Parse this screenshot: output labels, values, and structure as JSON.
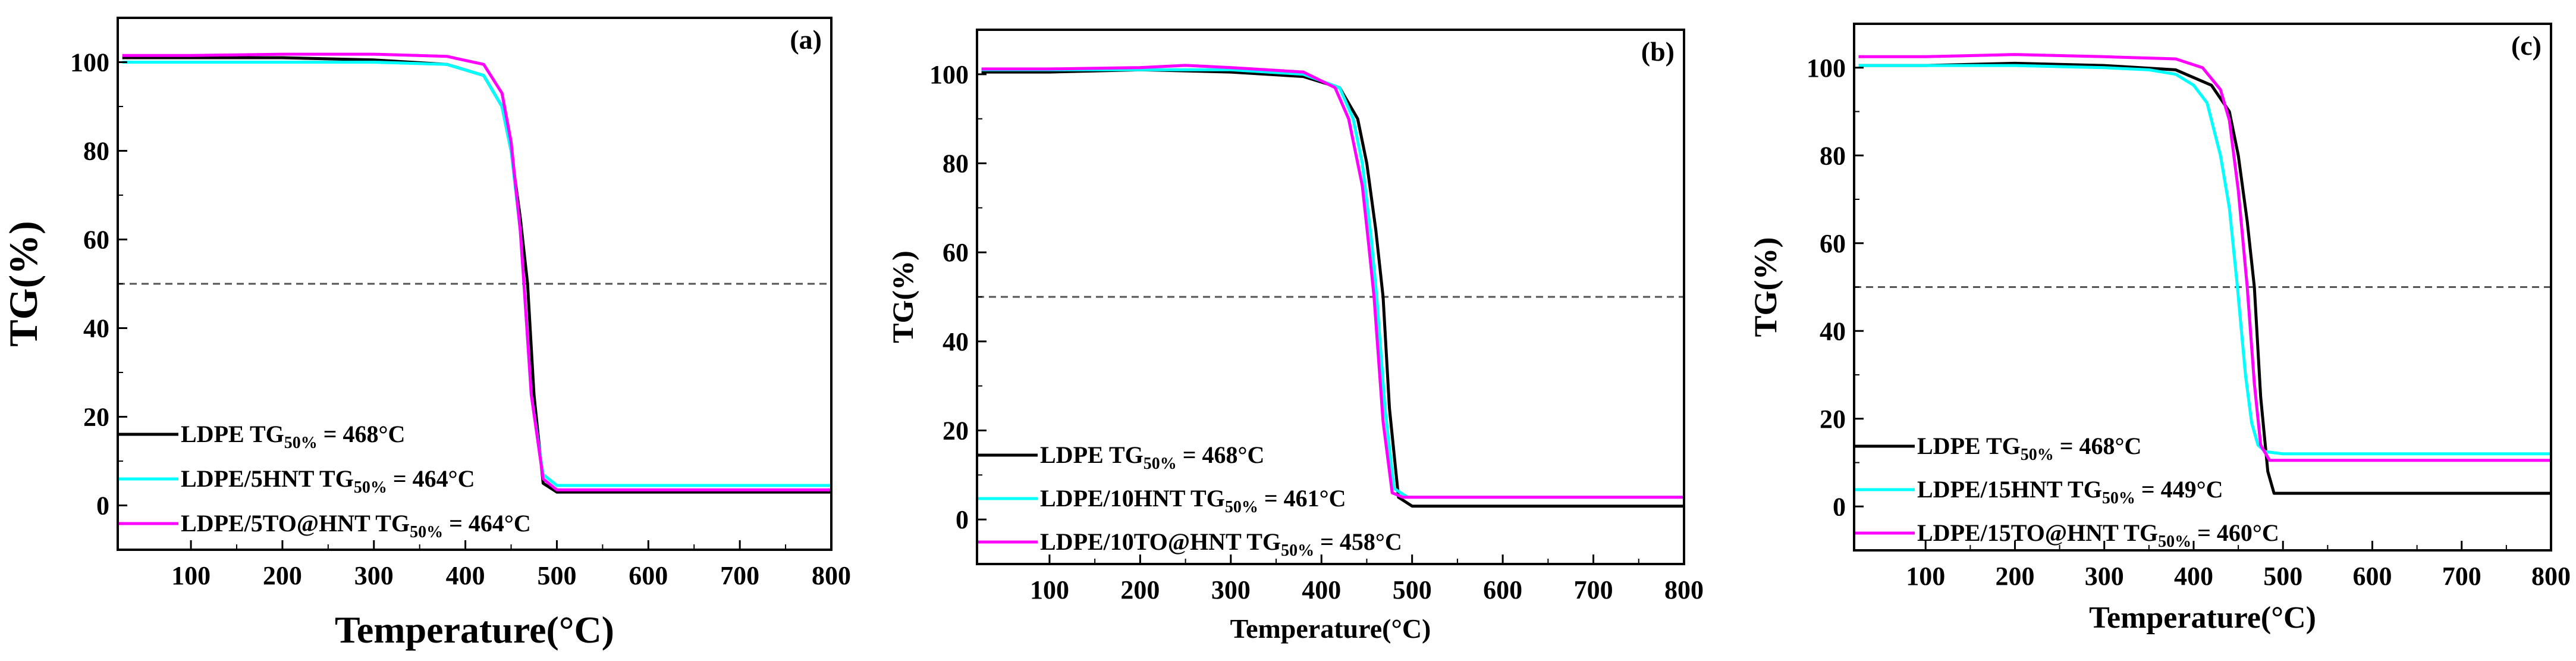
{
  "chart_data": [
    {
      "type": "line",
      "panel_label": "(a)",
      "xlabel": "Temperature(°C)",
      "ylabel": "TG(%)",
      "xlim": [
        20,
        800
      ],
      "ylim": [
        -10,
        110
      ],
      "x_ticks": [
        100,
        200,
        300,
        400,
        500,
        600,
        700,
        800
      ],
      "y_ticks": [
        0,
        20,
        40,
        60,
        80,
        100
      ],
      "reference_line": {
        "y": 50,
        "style": "dashed"
      },
      "legend_position": "bottom-left",
      "series": [
        {
          "name": "LDPE",
          "label_prefix": "LDPE TG",
          "label_sub": "50%",
          "label_value": " = 468°C",
          "color": "#000000",
          "x": [
            25,
            100,
            200,
            300,
            380,
            420,
            440,
            450,
            460,
            468,
            475,
            485,
            500,
            600,
            700,
            800
          ],
          "y": [
            101,
            101,
            101,
            100.5,
            99.5,
            97,
            90,
            80,
            65,
            50,
            25,
            5,
            3,
            3,
            3,
            3
          ]
        },
        {
          "name": "LDPE/5HNT",
          "label_prefix": "LDPE/5HNT TG",
          "label_sub": "50%",
          "label_value": " = 464°C",
          "color": "#00ffff",
          "x": [
            25,
            100,
            200,
            300,
            380,
            420,
            440,
            450,
            460,
            464,
            472,
            485,
            500,
            600,
            700,
            800
          ],
          "y": [
            100,
            100,
            100,
            100,
            99.5,
            97,
            90,
            80,
            62,
            50,
            25,
            7,
            4.5,
            4.5,
            4.5,
            4.5
          ]
        },
        {
          "name": "LDPE/5TO@HNT",
          "label_prefix": "LDPE/5TO@HNT TG",
          "label_sub": "50%",
          "label_value": " = 464°C",
          "color": "#ff00ff",
          "x": [
            25,
            100,
            200,
            300,
            380,
            420,
            440,
            450,
            460,
            464,
            472,
            485,
            500,
            600,
            700,
            800
          ],
          "y": [
            101.5,
            101.5,
            101.8,
            101.8,
            101.3,
            99.5,
            93,
            82,
            62,
            50,
            25,
            6,
            3.5,
            3.5,
            3.5,
            3.5
          ]
        }
      ]
    },
    {
      "type": "line",
      "panel_label": "(b)",
      "xlabel": "Temperature(°C)",
      "ylabel": "TG(%)",
      "xlim": [
        20,
        800
      ],
      "ylim": [
        -10,
        110
      ],
      "x_ticks": [
        100,
        200,
        300,
        400,
        500,
        600,
        700,
        800
      ],
      "y_ticks": [
        0,
        20,
        40,
        60,
        80,
        100
      ],
      "reference_line": {
        "y": 50,
        "style": "dashed"
      },
      "legend_position": "bottom-left",
      "series": [
        {
          "name": "LDPE",
          "label_prefix": "LDPE TG",
          "label_sub": "50%",
          "label_value": " = 468°C",
          "color": "#000000",
          "x": [
            25,
            100,
            200,
            300,
            380,
            420,
            440,
            450,
            460,
            468,
            475,
            485,
            500,
            600,
            700,
            800
          ],
          "y": [
            100.5,
            100.5,
            101,
            100.5,
            99.5,
            97,
            90,
            80,
            65,
            50,
            25,
            5,
            3,
            3,
            3,
            3
          ]
        },
        {
          "name": "LDPE/10HNT",
          "label_prefix": "LDPE/10HNT TG",
          "label_sub": "50%",
          "label_value": " = 461°C",
          "color": "#00ffff",
          "x": [
            25,
            100,
            200,
            300,
            380,
            420,
            435,
            445,
            455,
            461,
            470,
            480,
            495,
            600,
            700,
            800
          ],
          "y": [
            101,
            101,
            101,
            101,
            100,
            97,
            90,
            80,
            63,
            50,
            25,
            7,
            5,
            5,
            5,
            5
          ]
        },
        {
          "name": "LDPE/10TO@HNT",
          "label_prefix": "LDPE/10TO@HNT TG",
          "label_sub": "50%",
          "label_value": " = 458°C",
          "color": "#ff00ff",
          "x": [
            25,
            100,
            200,
            250,
            300,
            380,
            415,
            430,
            445,
            452,
            458,
            468,
            478,
            490,
            600,
            700,
            800
          ],
          "y": [
            101.2,
            101.2,
            101.5,
            102,
            101.5,
            100.5,
            97,
            90,
            75,
            62,
            50,
            22,
            6,
            5,
            5,
            5,
            5
          ]
        }
      ]
    },
    {
      "type": "line",
      "panel_label": "(c)",
      "xlabel": "Temperature(°C)",
      "ylabel": "TG(%)",
      "xlim": [
        20,
        800
      ],
      "ylim": [
        -10,
        110
      ],
      "x_ticks": [
        100,
        200,
        300,
        400,
        500,
        600,
        700,
        800
      ],
      "y_ticks": [
        0,
        20,
        40,
        60,
        80,
        100
      ],
      "reference_line": {
        "y": 50,
        "style": "dashed"
      },
      "legend_position": "bottom-left",
      "series": [
        {
          "name": "LDPE",
          "label_prefix": "LDPE TG",
          "label_sub": "50%",
          "label_value": " = 468°C",
          "color": "#000000",
          "x": [
            25,
            100,
            200,
            300,
            380,
            420,
            440,
            450,
            460,
            468,
            475,
            483,
            490,
            500,
            600,
            700,
            800
          ],
          "y": [
            100.5,
            100.5,
            101,
            100.5,
            99.5,
            96,
            90,
            80,
            65,
            50,
            25,
            8,
            3,
            3,
            3,
            3,
            3
          ]
        },
        {
          "name": "LDPE/15HNT",
          "label_prefix": "LDPE/15HNT TG",
          "label_sub": "50%",
          "label_value": " = 449°C",
          "color": "#00ffff",
          "x": [
            25,
            100,
            200,
            300,
            350,
            380,
            400,
            415,
            430,
            440,
            449,
            458,
            465,
            472,
            480,
            500,
            600,
            700,
            800
          ],
          "y": [
            100.5,
            100.5,
            100.5,
            100,
            99.5,
            98.5,
            96,
            92,
            80,
            68,
            50,
            30,
            19,
            14,
            12.5,
            12,
            12,
            12,
            12
          ]
        },
        {
          "name": "LDPE/15TO@HNT",
          "label_prefix": "LDPE/15TO@HNT TG",
          "label_sub": "50%",
          "label_value": " = 460°C",
          "color": "#ff00ff",
          "x": [
            25,
            100,
            200,
            300,
            380,
            410,
            430,
            440,
            450,
            460,
            468,
            475,
            485,
            500,
            600,
            700,
            800
          ],
          "y": [
            102.5,
            102.5,
            103,
            102.5,
            102,
            100,
            95,
            88,
            72,
            50,
            28,
            14,
            10.5,
            10.5,
            10.5,
            10.5,
            10.5
          ]
        }
      ]
    }
  ]
}
